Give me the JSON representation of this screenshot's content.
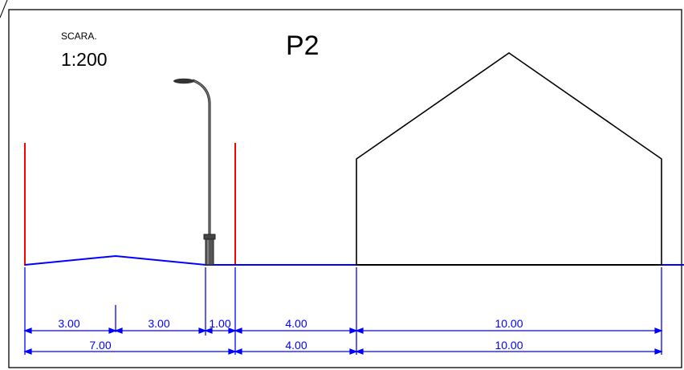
{
  "header": {
    "scale_caption": "SCARA.",
    "scale_value": "1:200",
    "profile_title": "P2"
  },
  "dimensions": {
    "row1": [
      "3.00",
      "3.00",
      "1.00",
      "4.00",
      "10.00"
    ],
    "row2": [
      "7.00",
      "4.00",
      "10.00"
    ]
  },
  "colors": {
    "dimension": "#0000ff",
    "ground": "#0000ff",
    "boundary": "#ff0000",
    "outline": "#000000",
    "lamp": "#444444"
  },
  "icons": [
    "street-lamp-icon"
  ]
}
